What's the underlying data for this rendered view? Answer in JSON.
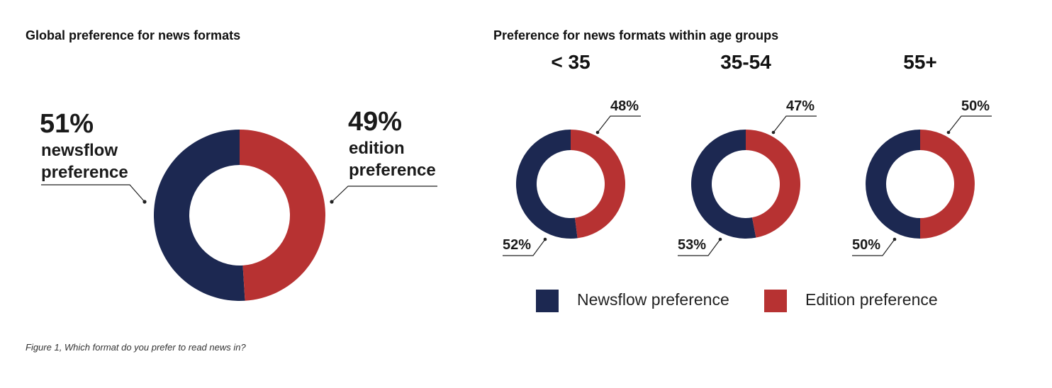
{
  "colors": {
    "newsflow": "#1c2851",
    "edition": "#b73232",
    "leader": "#222222"
  },
  "caption": "Figure 1, Which format do you prefer to read news in?",
  "chart_data": [
    {
      "type": "pie",
      "title": "Global preference for news formats",
      "categories": [
        "newsflow preference",
        "edition preference"
      ],
      "values": [
        51,
        49
      ],
      "labels": {
        "newsflow_pct": "51%",
        "newsflow_line1": "newsflow",
        "newsflow_line2": "preference",
        "edition_pct": "49%",
        "edition_line1": "edition",
        "edition_line2": "preference"
      }
    },
    {
      "type": "pie",
      "title": "Preference for news formats within age groups",
      "categories": [
        "Newsflow preference",
        "Edition preference"
      ],
      "legend_position": "bottom",
      "legend": [
        "Newsflow preference",
        "Edition preference"
      ],
      "groups": [
        {
          "name": "< 35",
          "newsflow": 52,
          "edition": 48,
          "newsflow_label": "52%",
          "edition_label": "48%"
        },
        {
          "name": "35-54",
          "newsflow": 53,
          "edition": 47,
          "newsflow_label": "53%",
          "edition_label": "47%"
        },
        {
          "name": "55+",
          "newsflow": 50,
          "edition": 50,
          "newsflow_label": "50%",
          "edition_label": "50%"
        }
      ]
    }
  ]
}
